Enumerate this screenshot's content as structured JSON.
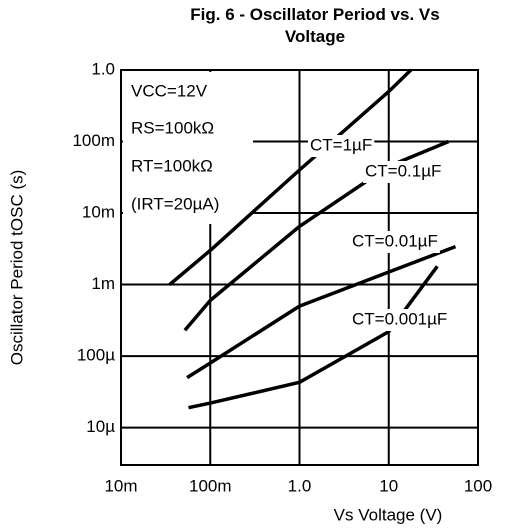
{
  "chart_data": {
    "type": "line",
    "title": "Fig. 6 - Oscillator Period vs. Vs Voltage",
    "x_label": "Vs Voltage (V)",
    "y_label": "Oscillator Period tOSC (s)",
    "x_log": true,
    "y_log": true,
    "grid": true,
    "xlim": [
      0.01,
      100
    ],
    "ylim": [
      3e-06,
      1
    ],
    "xticks": [
      {
        "value": 0.01,
        "label": "10m"
      },
      {
        "value": 0.1,
        "label": "100m"
      },
      {
        "value": 1,
        "label": "1.0"
      },
      10,
      100
    ],
    "yticks": [
      {
        "value": 1,
        "label": "1.0"
      },
      {
        "value": 0.1,
        "label": "100m"
      },
      {
        "value": 0.01,
        "label": "10m"
      },
      {
        "value": 0.001,
        "label": "1m"
      },
      {
        "value": 0.0001,
        "label": "100µ"
      },
      {
        "value": 1e-05,
        "label": "10µ"
      }
    ],
    "annotations": [
      "VCC=12V",
      "RS=100kΩ",
      "RT=100kΩ",
      "(IRT=20µA)"
    ],
    "series": [
      {
        "name": "CT=1µF",
        "color": "#000000",
        "x": [
          0.035,
          0.1,
          1,
          10,
          17.7
        ],
        "values": [
          0.001,
          0.003,
          0.04,
          0.5,
          1
        ]
      },
      {
        "name": "CT=0.1µF",
        "color": "#000000",
        "x": [
          0.052,
          0.1,
          1,
          10,
          47
        ],
        "values": [
          0.00023,
          0.0006,
          0.0065,
          0.045,
          0.1
        ]
      },
      {
        "name": "CT=0.01µF",
        "color": "#000000",
        "x": [
          0.055,
          0.1,
          1,
          10,
          56
        ],
        "values": [
          5e-05,
          8e-05,
          0.0005,
          0.0015,
          0.0034
        ]
      },
      {
        "name": "CT=0.001µF",
        "color": "#000000",
        "x": [
          0.057,
          0.1,
          1,
          10,
          35
        ],
        "values": [
          1.9e-05,
          2.2e-05,
          4.3e-05,
          0.00022,
          0.0018
        ]
      }
    ]
  }
}
